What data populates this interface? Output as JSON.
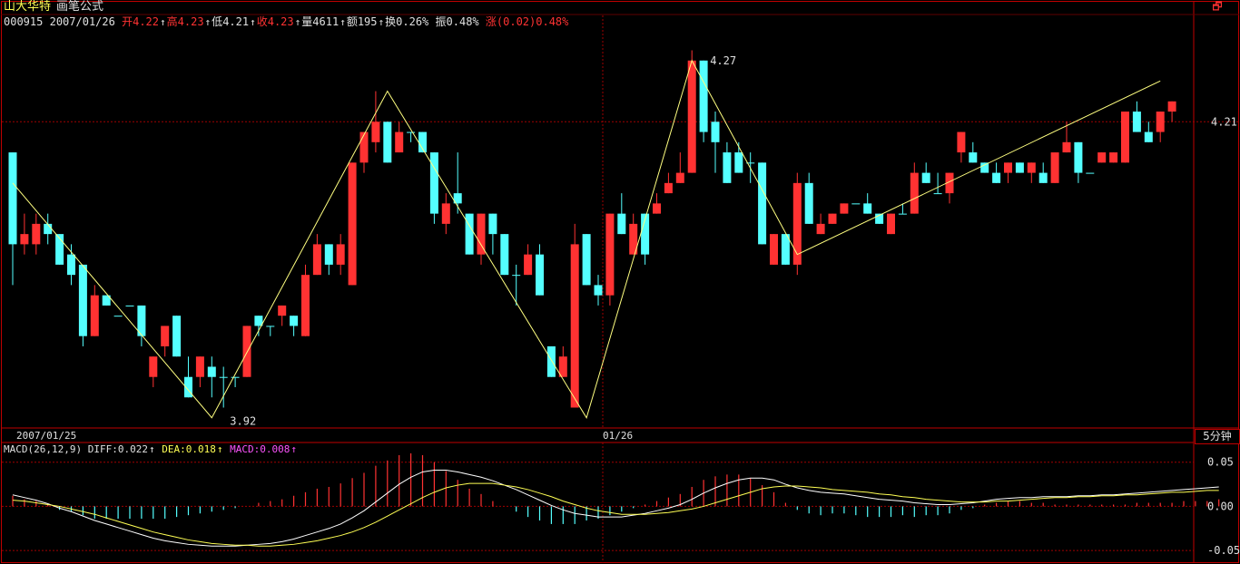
{
  "header": {
    "stock_name": "山大华特",
    "formula_name": "画笔公式",
    "code": "000915",
    "date": "2007/01/26",
    "open_label": "开",
    "open": "4.22",
    "high_label": "高",
    "high": "4.23",
    "low_label": "低",
    "low": "4.21",
    "close_label": "收",
    "close": "4.23",
    "volume_label": "量",
    "volume": "4611",
    "amount_label": "额",
    "amount": "195",
    "turnover_label": "换",
    "turnover": "0.26%",
    "amplitude_label": "振",
    "amplitude": "0.48%",
    "change_label": "涨",
    "change": "(0.02)0.48%"
  },
  "macd_header": {
    "indicator": "MACD(26,12,9)",
    "diff_label": "DIFF:",
    "diff": "0.022",
    "dea_label": "DEA:",
    "dea": "0.018",
    "macd_label": "MACD:",
    "macd": "0.008"
  },
  "period_tab": "5分钟",
  "corner_icon": "restore-icon",
  "colors": {
    "up": "#ff3232",
    "down": "#54ffff",
    "zigzag": "#ffff80",
    "diff": "#ffffff",
    "dea": "#ffff54",
    "grid": "#a00000",
    "border": "#c00000"
  },
  "chart_data": [
    {
      "type": "candlestick",
      "x_labels": [
        "2007/01/25",
        "01/26"
      ],
      "ylim": [
        3.91,
        4.3
      ],
      "y_ticks": [
        "4.21"
      ],
      "annotations": [
        "3.92",
        "4.27"
      ],
      "candles": [
        [
          4.18,
          4.09,
          4.18,
          4.05,
          "d"
        ],
        [
          4.09,
          4.1,
          4.12,
          4.08,
          "u"
        ],
        [
          4.09,
          4.11,
          4.12,
          4.08,
          "u"
        ],
        [
          4.11,
          4.1,
          4.12,
          4.09,
          "d"
        ],
        [
          4.1,
          4.07,
          4.1,
          4.07,
          "d"
        ],
        [
          4.08,
          4.06,
          4.09,
          4.05,
          "d"
        ],
        [
          4.07,
          4.0,
          4.07,
          3.99,
          "d"
        ],
        [
          4.0,
          4.04,
          4.05,
          4.0,
          "u"
        ],
        [
          4.03,
          4.04,
          4.04,
          4.03,
          "d"
        ],
        [
          4.02,
          4.02,
          4.02,
          4.02,
          "d"
        ],
        [
          4.03,
          4.03,
          4.03,
          4.03,
          "d"
        ],
        [
          4.03,
          4.0,
          4.03,
          3.99,
          "d"
        ],
        [
          3.96,
          3.98,
          3.98,
          3.95,
          "u"
        ],
        [
          3.99,
          4.01,
          4.01,
          3.98,
          "u"
        ],
        [
          4.02,
          3.98,
          4.02,
          3.98,
          "d"
        ],
        [
          3.96,
          3.94,
          3.98,
          3.94,
          "d"
        ],
        [
          3.96,
          3.98,
          3.98,
          3.95,
          "u"
        ],
        [
          3.97,
          3.96,
          3.98,
          3.94,
          "d"
        ],
        [
          3.96,
          3.96,
          3.97,
          3.93,
          "d"
        ],
        [
          3.96,
          3.96,
          3.96,
          3.95,
          "d"
        ],
        [
          3.96,
          4.01,
          4.01,
          3.96,
          "u"
        ],
        [
          4.02,
          4.01,
          4.02,
          4.0,
          "d"
        ],
        [
          4.01,
          4.01,
          4.01,
          4.0,
          "d"
        ],
        [
          4.02,
          4.03,
          4.03,
          4.01,
          "u"
        ],
        [
          4.02,
          4.01,
          4.02,
          4.0,
          "d"
        ],
        [
          4.0,
          4.06,
          4.07,
          4.0,
          "u"
        ],
        [
          4.06,
          4.09,
          4.1,
          4.06,
          "u"
        ],
        [
          4.09,
          4.07,
          4.09,
          4.06,
          "d"
        ],
        [
          4.09,
          4.07,
          4.1,
          4.06,
          "u"
        ],
        [
          4.05,
          4.17,
          4.17,
          4.05,
          "u"
        ],
        [
          4.17,
          4.2,
          4.2,
          4.16,
          "u"
        ],
        [
          4.21,
          4.19,
          4.24,
          4.18,
          "u"
        ],
        [
          4.21,
          4.17,
          4.21,
          4.17,
          "d"
        ],
        [
          4.18,
          4.2,
          4.21,
          4.18,
          "u"
        ],
        [
          4.2,
          4.2,
          4.2,
          4.19,
          "d"
        ],
        [
          4.2,
          4.18,
          4.2,
          4.18,
          "d"
        ],
        [
          4.18,
          4.12,
          4.18,
          4.11,
          "d"
        ],
        [
          4.11,
          4.13,
          4.14,
          4.1,
          "u"
        ],
        [
          4.14,
          4.13,
          4.18,
          4.12,
          "d"
        ],
        [
          4.12,
          4.08,
          4.12,
          4.08,
          "d"
        ],
        [
          4.08,
          4.12,
          4.12,
          4.07,
          "u"
        ],
        [
          4.12,
          4.1,
          4.12,
          4.08,
          "d"
        ],
        [
          4.1,
          4.06,
          4.1,
          4.06,
          "d"
        ],
        [
          4.06,
          4.06,
          4.07,
          4.03,
          "d"
        ],
        [
          4.06,
          4.08,
          4.09,
          4.06,
          "u"
        ],
        [
          4.08,
          4.04,
          4.09,
          4.04,
          "d"
        ],
        [
          3.99,
          3.96,
          3.99,
          3.96,
          "d"
        ],
        [
          3.96,
          3.98,
          3.99,
          3.96,
          "u"
        ],
        [
          3.93,
          4.09,
          4.11,
          3.93,
          "u"
        ],
        [
          4.1,
          4.05,
          4.1,
          4.05,
          "d"
        ],
        [
          4.05,
          4.04,
          4.06,
          4.03,
          "d"
        ],
        [
          4.04,
          4.12,
          4.12,
          4.03,
          "u"
        ],
        [
          4.12,
          4.1,
          4.14,
          4.1,
          "d"
        ],
        [
          4.08,
          4.11,
          4.12,
          4.08,
          "u"
        ],
        [
          4.12,
          4.08,
          4.12,
          4.07,
          "d"
        ],
        [
          4.12,
          4.13,
          4.14,
          4.12,
          "u"
        ],
        [
          4.14,
          4.15,
          4.16,
          4.14,
          "u"
        ],
        [
          4.15,
          4.16,
          4.18,
          4.15,
          "u"
        ],
        [
          4.16,
          4.27,
          4.28,
          4.16,
          "u"
        ],
        [
          4.27,
          4.2,
          4.27,
          4.19,
          "d"
        ],
        [
          4.21,
          4.19,
          4.22,
          4.16,
          "d"
        ],
        [
          4.18,
          4.15,
          4.19,
          4.15,
          "d"
        ],
        [
          4.18,
          4.16,
          4.19,
          4.16,
          "d"
        ],
        [
          4.17,
          4.17,
          4.18,
          4.15,
          "d"
        ],
        [
          4.17,
          4.09,
          4.17,
          4.09,
          "d"
        ],
        [
          4.07,
          4.1,
          4.1,
          4.07,
          "u"
        ],
        [
          4.1,
          4.07,
          4.1,
          4.07,
          "d"
        ],
        [
          4.07,
          4.15,
          4.16,
          4.06,
          "u"
        ],
        [
          4.15,
          4.11,
          4.16,
          4.11,
          "d"
        ],
        [
          4.1,
          4.11,
          4.12,
          4.1,
          "u"
        ],
        [
          4.11,
          4.12,
          4.12,
          4.11,
          "u"
        ],
        [
          4.12,
          4.13,
          4.13,
          4.12,
          "u"
        ],
        [
          4.13,
          4.13,
          4.13,
          4.13,
          "d"
        ],
        [
          4.13,
          4.12,
          4.14,
          4.12,
          "d"
        ],
        [
          4.12,
          4.11,
          4.12,
          4.11,
          "d"
        ],
        [
          4.1,
          4.12,
          4.12,
          4.1,
          "u"
        ],
        [
          4.12,
          4.12,
          4.13,
          4.12,
          "d"
        ],
        [
          4.12,
          4.16,
          4.17,
          4.12,
          "u"
        ],
        [
          4.16,
          4.15,
          4.17,
          4.15,
          "d"
        ],
        [
          4.14,
          4.14,
          4.16,
          4.14,
          "d"
        ],
        [
          4.14,
          4.16,
          4.16,
          4.13,
          "u"
        ],
        [
          4.18,
          4.2,
          4.2,
          4.17,
          "u"
        ],
        [
          4.18,
          4.17,
          4.19,
          4.17,
          "d"
        ],
        [
          4.17,
          4.16,
          4.17,
          4.16,
          "d"
        ],
        [
          4.16,
          4.15,
          4.17,
          4.15,
          "d"
        ],
        [
          4.16,
          4.17,
          4.17,
          4.15,
          "u"
        ],
        [
          4.17,
          4.16,
          4.17,
          4.16,
          "d"
        ],
        [
          4.16,
          4.17,
          4.17,
          4.15,
          "u"
        ],
        [
          4.16,
          4.15,
          4.17,
          4.15,
          "d"
        ],
        [
          4.15,
          4.18,
          4.18,
          4.15,
          "u"
        ],
        [
          4.18,
          4.19,
          4.21,
          4.18,
          "u"
        ],
        [
          4.19,
          4.16,
          4.19,
          4.15,
          "d"
        ],
        [
          4.16,
          4.16,
          4.16,
          4.16,
          "d"
        ],
        [
          4.17,
          4.18,
          4.18,
          4.17,
          "u"
        ],
        [
          4.17,
          4.18,
          4.18,
          4.17,
          "u"
        ],
        [
          4.17,
          4.22,
          4.22,
          4.17,
          "u"
        ],
        [
          4.22,
          4.2,
          4.23,
          4.2,
          "d"
        ],
        [
          4.19,
          4.2,
          4.21,
          4.19,
          "d"
        ],
        [
          4.2,
          4.22,
          4.22,
          4.19,
          "u"
        ],
        [
          4.22,
          4.23,
          4.23,
          4.21,
          "u"
        ]
      ],
      "zigzag": [
        [
          0,
          4.15
        ],
        [
          17,
          3.92
        ],
        [
          32,
          4.24
        ],
        [
          49,
          3.92
        ],
        [
          58,
          4.27
        ],
        [
          67,
          4.08
        ],
        [
          98,
          4.25
        ]
      ]
    },
    {
      "type": "macd",
      "ylim": [
        -0.055,
        0.06
      ],
      "y_ticks": [
        "0.05",
        "0.00",
        "-0.05"
      ],
      "diff": [
        0.013,
        0.01,
        0.007,
        0.003,
        -0.002,
        -0.006,
        -0.011,
        -0.016,
        -0.02,
        -0.024,
        -0.028,
        -0.032,
        -0.036,
        -0.039,
        -0.041,
        -0.043,
        -0.044,
        -0.045,
        -0.045,
        -0.045,
        -0.044,
        -0.043,
        -0.042,
        -0.04,
        -0.037,
        -0.033,
        -0.029,
        -0.025,
        -0.02,
        -0.013,
        -0.005,
        0.005,
        0.015,
        0.025,
        0.033,
        0.039,
        0.041,
        0.041,
        0.039,
        0.036,
        0.033,
        0.029,
        0.024,
        0.019,
        0.013,
        0.007,
        0.001,
        -0.004,
        -0.008,
        -0.01,
        -0.012,
        -0.012,
        -0.012,
        -0.01,
        -0.008,
        -0.005,
        -0.002,
        0.002,
        0.008,
        0.015,
        0.021,
        0.026,
        0.03,
        0.032,
        0.032,
        0.03,
        0.025,
        0.021,
        0.018,
        0.016,
        0.015,
        0.014,
        0.012,
        0.01,
        0.008,
        0.007,
        0.006,
        0.004,
        0.003,
        0.002,
        0.002,
        0.003,
        0.004,
        0.006,
        0.008,
        0.009,
        0.01,
        0.01,
        0.011,
        0.011,
        0.011,
        0.012,
        0.012,
        0.013,
        0.013,
        0.014,
        0.015,
        0.016,
        0.017,
        0.018,
        0.019,
        0.02,
        0.021,
        0.022
      ],
      "dea": [
        0.007,
        0.006,
        0.004,
        0.002,
        0.0,
        -0.003,
        -0.006,
        -0.009,
        -0.013,
        -0.017,
        -0.021,
        -0.025,
        -0.029,
        -0.032,
        -0.035,
        -0.038,
        -0.04,
        -0.042,
        -0.043,
        -0.044,
        -0.044,
        -0.045,
        -0.045,
        -0.044,
        -0.043,
        -0.041,
        -0.039,
        -0.036,
        -0.033,
        -0.029,
        -0.024,
        -0.018,
        -0.011,
        -0.004,
        0.003,
        0.01,
        0.016,
        0.021,
        0.024,
        0.026,
        0.026,
        0.026,
        0.024,
        0.022,
        0.019,
        0.015,
        0.011,
        0.006,
        0.002,
        -0.002,
        -0.005,
        -0.007,
        -0.009,
        -0.009,
        -0.009,
        -0.008,
        -0.007,
        -0.005,
        -0.003,
        0.0,
        0.004,
        0.008,
        0.012,
        0.016,
        0.02,
        0.022,
        0.023,
        0.023,
        0.022,
        0.021,
        0.019,
        0.018,
        0.017,
        0.016,
        0.014,
        0.013,
        0.011,
        0.01,
        0.008,
        0.007,
        0.006,
        0.005,
        0.005,
        0.005,
        0.006,
        0.006,
        0.007,
        0.008,
        0.009,
        0.01,
        0.01,
        0.011,
        0.011,
        0.012,
        0.012,
        0.013,
        0.013,
        0.014,
        0.015,
        0.016,
        0.016,
        0.017,
        0.018,
        0.018
      ]
    }
  ]
}
